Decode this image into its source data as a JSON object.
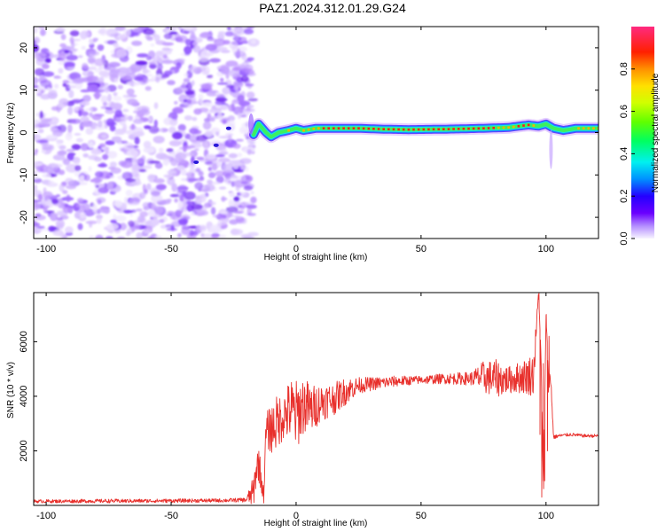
{
  "title": "PAZ1.2024.312.01.29.G24",
  "chart_data": [
    {
      "type": "heatmap",
      "xlabel": "Height of straight line (km)",
      "ylabel": "Frequency (Hz)",
      "xlim": [
        -105,
        121
      ],
      "ylim": [
        -25,
        25
      ],
      "xticks": [
        -100,
        -50,
        0,
        50,
        100
      ],
      "yticks": [
        -20,
        -10,
        0,
        10,
        20
      ],
      "colorbar": {
        "label": "Normalized spectral amplitude",
        "range": [
          0,
          1
        ],
        "ticks": [
          0.0,
          0.2,
          0.4,
          0.6,
          0.8
        ]
      },
      "noise_region": {
        "x": [
          -105,
          -17
        ],
        "frequency": [
          -25,
          25
        ],
        "amplitude_range": [
          0.0,
          0.1
        ]
      },
      "signal_line": {
        "x": [
          -17,
          -15,
          -12,
          -10,
          -7,
          -3,
          0,
          3,
          8,
          15,
          25,
          35,
          45,
          60,
          75,
          85,
          93,
          97,
          100,
          103,
          107,
          112,
          121
        ],
        "frequency": [
          -0.5,
          2,
          0,
          -1,
          0,
          0.5,
          1,
          0.5,
          1,
          1,
          1,
          0.8,
          0.7,
          0.8,
          1,
          1.2,
          1.8,
          1.5,
          2,
          1,
          0.5,
          1,
          1
        ],
        "peak_amplitude": [
          0.3,
          0.4,
          0.5,
          0.6,
          0.7,
          0.85,
          0.7,
          0.8,
          0.9,
          0.95,
          1.0,
          1.0,
          1.0,
          1.0,
          0.95,
          0.9,
          0.95,
          0.7,
          0.5,
          0.6,
          0.7,
          0.8,
          0.85
        ]
      },
      "grid": false
    },
    {
      "type": "line",
      "xlabel": "Height of straight line (km)",
      "ylabel": "SNR (10 * v/v)",
      "xlim": [
        -105,
        121
      ],
      "ylim": [
        0,
        7800
      ],
      "xticks": [
        -100,
        -50,
        0,
        50,
        100
      ],
      "yticks": [
        2000,
        4000,
        6000
      ],
      "series": [
        {
          "color": "#e8302c",
          "x": [
            -105,
            -80,
            -50,
            -30,
            -20,
            -17,
            -16,
            -15,
            -13,
            -12,
            -10,
            -8,
            -5,
            -2,
            0,
            3,
            6,
            10,
            15,
            20,
            25,
            30,
            40,
            50,
            60,
            70,
            75,
            80,
            85,
            90,
            95,
            97,
            98,
            99,
            100,
            101,
            102,
            103,
            105,
            110,
            115,
            121
          ],
          "y": [
            150,
            160,
            170,
            180,
            200,
            500,
            1300,
            1600,
            350,
            2700,
            2800,
            3000,
            3300,
            3500,
            3300,
            3700,
            3500,
            3800,
            3900,
            4200,
            4400,
            4450,
            4550,
            4600,
            4650,
            4650,
            4700,
            4650,
            4600,
            4700,
            4800,
            7800,
            5500,
            300,
            7000,
            4600,
            4500,
            2500,
            2550,
            2600,
            2550,
            2550
          ],
          "noise_amplitude": [
            60,
            70,
            70,
            70,
            80,
            600,
            600,
            700,
            300,
            700,
            900,
            1000,
            900,
            1200,
            1300,
            1100,
            900,
            700,
            600,
            500,
            300,
            250,
            200,
            150,
            200,
            250,
            600,
            700,
            500,
            600,
            800,
            0,
            0,
            0,
            0,
            500,
            300,
            80,
            60,
            60,
            60,
            60
          ]
        }
      ],
      "grid": false
    }
  ]
}
